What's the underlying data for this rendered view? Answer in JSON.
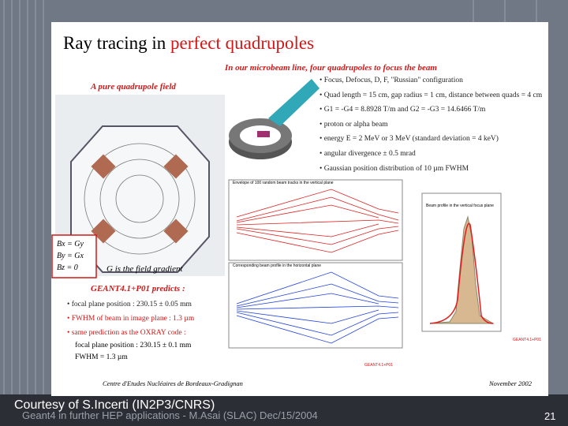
{
  "slide": {
    "title_plain": "Ray tracing in",
    "title_red": "perfect quadrupoles",
    "subtitle": "In our microbeam line, four quadrupoles to focus the beam",
    "bullets": [
      "Focus, Defocus, D, F, \"Russian\" configuration",
      "Quad length = 15 cm, gap radius = 1 cm, distance between quads = 4 cm",
      "G1 = -G4 = 8.8928 T/m and G2 = -G3 = 14.6466 T/m",
      "proton or alpha beam",
      "energy E = 2 MeV or 3 MeV (standard deviation = 4 keV)",
      "angular divergence ± 0.5 mrad",
      "Gaussian position distribution of 10 µm FWHM"
    ],
    "field_title": "A pure quadrupole field",
    "field_equations": [
      "Bx = Gy",
      "By = Gx",
      "Bz = 0"
    ],
    "field_note": "G is the field gradient",
    "predicts_title": "GEANT4.1+P01 predicts :",
    "predictions": [
      "focal plane position : 230.15 ± 0.05 mm",
      "FWHM of beam in image plane : 1.3 µm",
      "same prediction as the OXRAY code :"
    ],
    "oxray": [
      "focal plane position : 230.15 ± 0.1 mm",
      "FWHM = 1.3 µm"
    ],
    "plots": [
      "Envelope of 100 random beam tracks in the vertical plane",
      "Corresponding beam profile in the horizontal plane",
      "Beam profile in the vertical focus plane",
      "GEANT4.1+P01"
    ],
    "institute": "Centre d'Etudes Nucléaires de Bordeaux-Gradignan",
    "date": "November 2002"
  },
  "footer": {
    "courtesy": "Courtesy of S.Incerti (IN2P3/CNRS)",
    "talk": "Geant4 in further HEP applications - M.Asai (SLAC)  Dec/15/2004",
    "page": "21"
  }
}
